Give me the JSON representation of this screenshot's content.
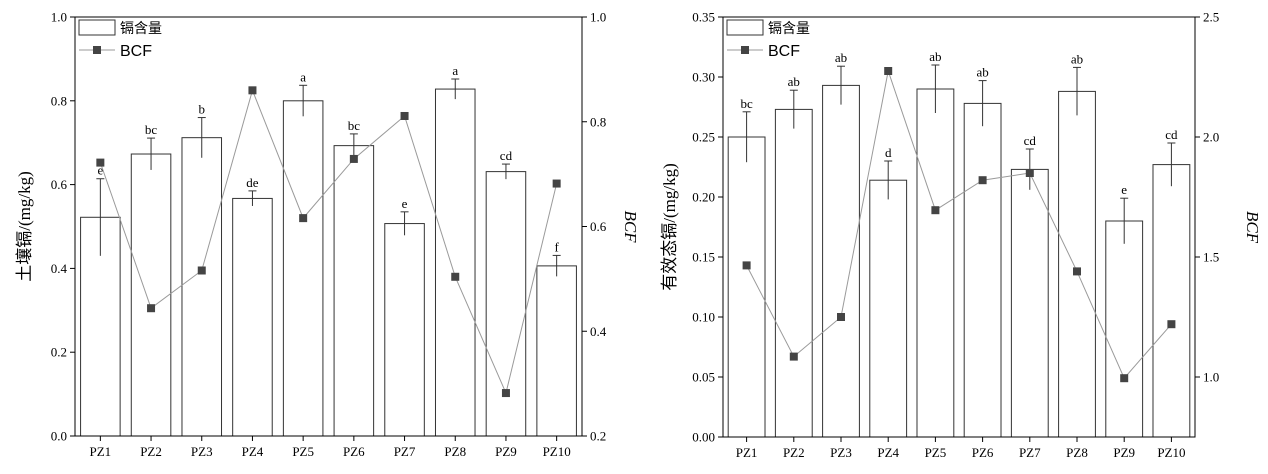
{
  "chart_data": [
    {
      "type": "bar",
      "categories": [
        "PZ1",
        "PZ2",
        "PZ3",
        "PZ4",
        "PZ5",
        "PZ6",
        "PZ7",
        "PZ8",
        "PZ9",
        "PZ10"
      ],
      "series": [
        {
          "name": "镉含量",
          "axis": "left",
          "values": [
            0.522,
            0.673,
            0.712,
            0.567,
            0.8,
            0.693,
            0.507,
            0.828,
            0.631,
            0.406
          ],
          "errors": [
            0.092,
            0.038,
            0.048,
            0.018,
            0.037,
            0.028,
            0.028,
            0.024,
            0.018,
            0.025
          ],
          "labels": [
            "e",
            "bc",
            "b",
            "de",
            "a",
            "bc",
            "e",
            "a",
            "cd",
            "f"
          ]
        },
        {
          "name": "BCF",
          "axis": "right",
          "style": "line-marker",
          "values": [
            0.722,
            0.444,
            0.516,
            0.86,
            0.616,
            0.729,
            0.811,
            0.504,
            0.282,
            0.682
          ]
        }
      ],
      "ylabel": "土壤镉/(mg/kg)",
      "ylim": [
        0,
        1.0
      ],
      "yticks": [
        "0.0",
        "0.2",
        "0.4",
        "0.6",
        "0.8",
        "1.0"
      ],
      "y2label": "BCF",
      "y2lim": [
        0.2,
        1.0
      ],
      "y2ticks": [
        "0.2",
        "0.4",
        "0.6",
        "0.8",
        "1.0"
      ],
      "legend": "top-left"
    },
    {
      "type": "bar",
      "categories": [
        "PZ1",
        "PZ2",
        "PZ3",
        "PZ4",
        "PZ5",
        "PZ6",
        "PZ7",
        "PZ8",
        "PZ9",
        "PZ10"
      ],
      "series": [
        {
          "name": "镉含量",
          "axis": "left",
          "values": [
            0.25,
            0.273,
            0.293,
            0.214,
            0.29,
            0.278,
            0.223,
            0.288,
            0.18,
            0.227
          ],
          "errors": [
            0.021,
            0.016,
            0.016,
            0.016,
            0.02,
            0.019,
            0.017,
            0.02,
            0.019,
            0.018
          ],
          "labels": [
            "bc",
            "ab",
            "ab",
            "d",
            "ab",
            "ab",
            "cd",
            "ab",
            "e",
            "cd"
          ]
        },
        {
          "name": "BCF",
          "axis": "right",
          "style": "line-marker",
          "values": [
            1.465,
            1.085,
            1.25,
            2.275,
            1.695,
            1.82,
            1.85,
            1.44,
            0.995,
            1.22
          ]
        }
      ],
      "ylabel": "有效态镉/(mg/kg)",
      "ylim": [
        0,
        0.35
      ],
      "yticks": [
        "0.00",
        "0.05",
        "0.10",
        "0.15",
        "0.20",
        "0.25",
        "0.30",
        "0.35"
      ],
      "y2label": "BCF",
      "y2lim": [
        0.75,
        2.5
      ],
      "y2ticks": [
        "1.0",
        "1.5",
        "2.0",
        "2.5"
      ],
      "legend": "top-left"
    }
  ]
}
